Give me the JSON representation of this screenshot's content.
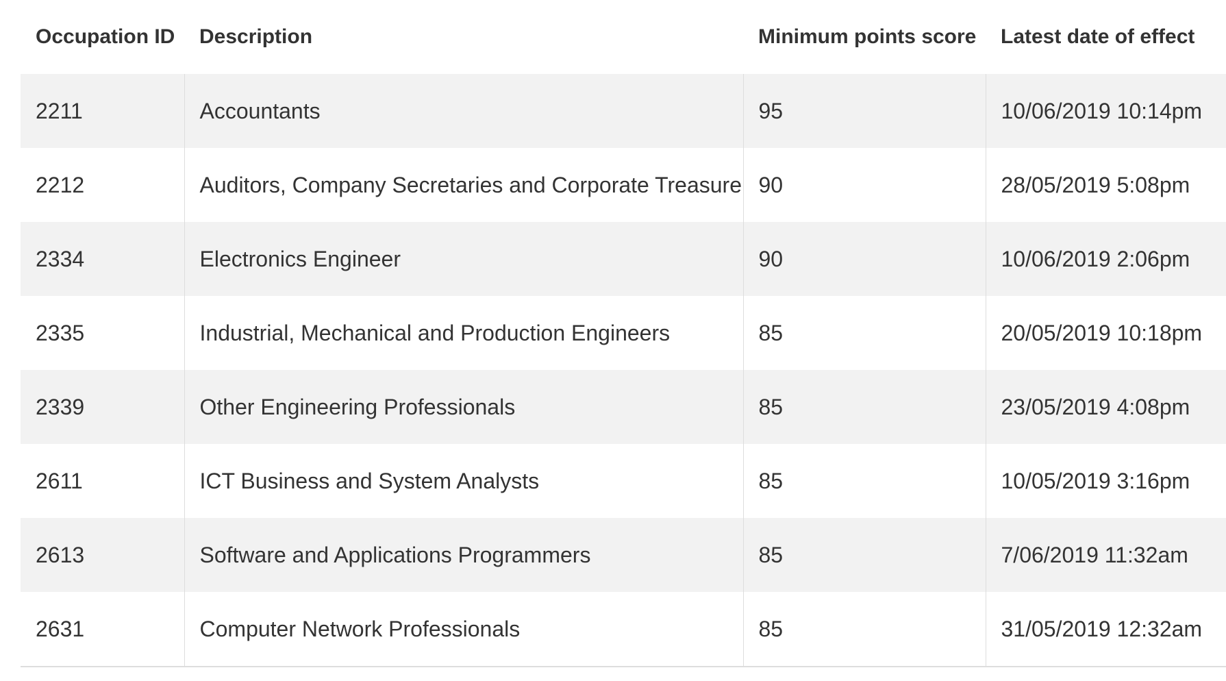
{
  "table": {
    "headers": [
      "Occupation ID",
      "Description",
      "Minimum points score",
      "Latest date of effect"
    ],
    "rows": [
      [
        "2211",
        "Accountants",
        "95",
        "10/06/2019 10:14pm"
      ],
      [
        "2212",
        "Auditors, Company Secretaries and Corporate Treasurers",
        "90",
        "28/05/2019 5:08pm"
      ],
      [
        "2334",
        "Electronics Engineer",
        "90",
        "10/06/2019 2:06pm"
      ],
      [
        "2335",
        "Industrial, Mechanical and Production Engineers",
        "85",
        "20/05/2019 10:18pm"
      ],
      [
        "2339",
        "Other Engineering Professionals",
        "85",
        "23/05/2019 4:08pm"
      ],
      [
        "2611",
        "ICT Business and System Analysts",
        "85",
        "10/05/2019 3:16pm"
      ],
      [
        "2613",
        "Software and Applications Programmers",
        "85",
        "7/06/2019 11:32am"
      ],
      [
        "2631",
        "Computer Network Professionals",
        "85",
        "31/05/2019 12:32am"
      ]
    ]
  },
  "colors": {
    "text": "#333333",
    "stripe": "#f2f2f2",
    "border": "#dddddd",
    "background": "#ffffff"
  }
}
